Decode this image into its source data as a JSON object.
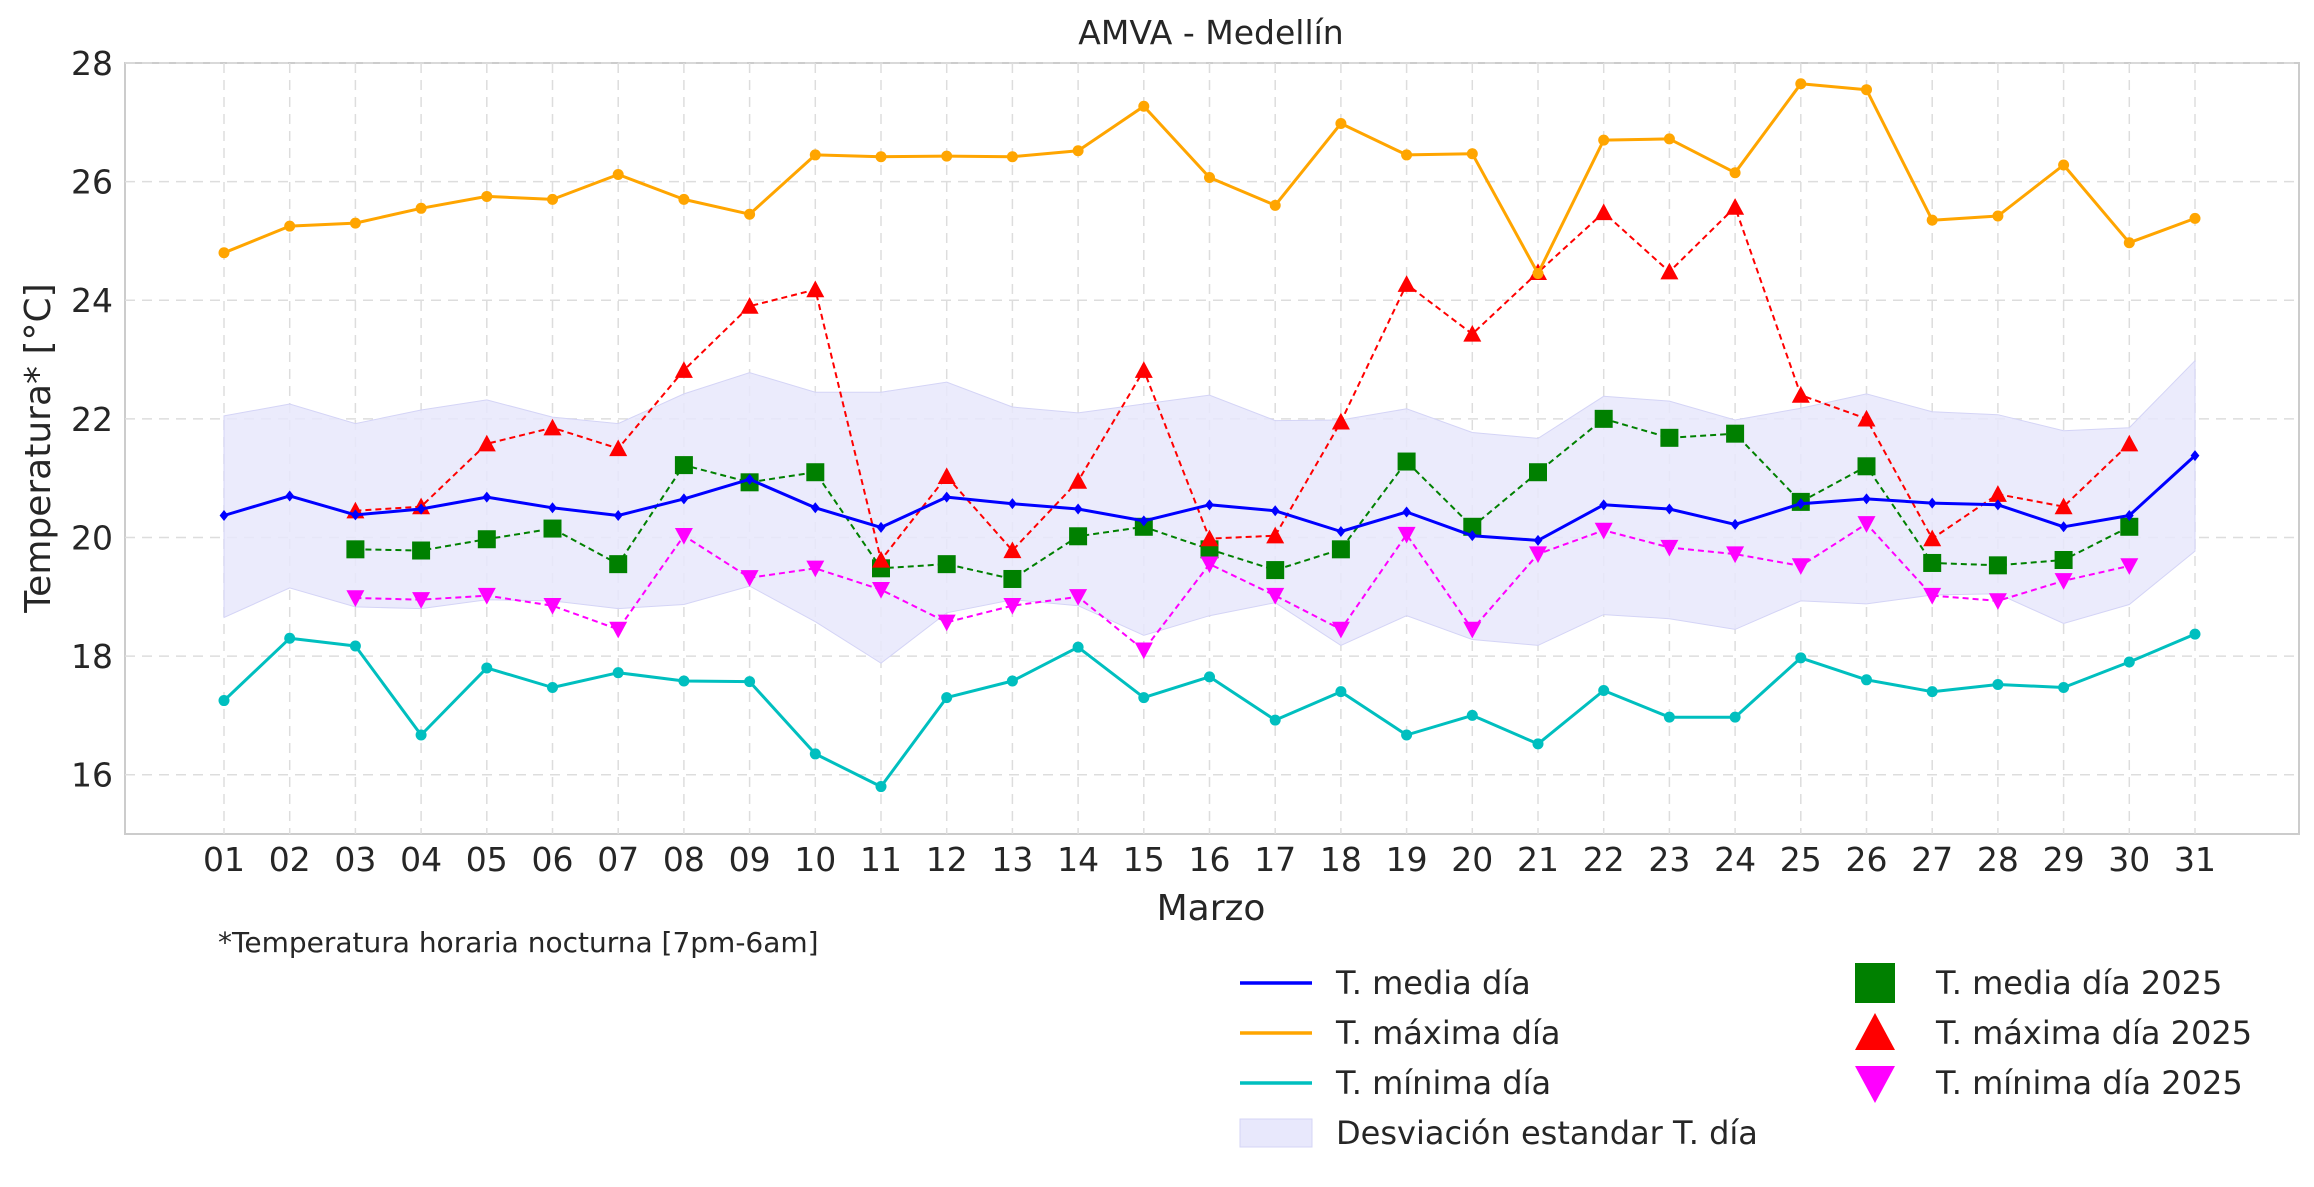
{
  "chart_data": {
    "type": "line",
    "title": "AMVA - Medellín",
    "xlabel": "Marzo",
    "ylabel": "Temperatura* [°C]",
    "footnote": "*Temperatura horaria nocturna [7pm-6am]",
    "categories": [
      "01",
      "02",
      "03",
      "04",
      "05",
      "06",
      "07",
      "08",
      "09",
      "10",
      "11",
      "12",
      "13",
      "14",
      "15",
      "16",
      "17",
      "18",
      "19",
      "20",
      "21",
      "22",
      "23",
      "24",
      "25",
      "26",
      "27",
      "28",
      "29",
      "30",
      "31"
    ],
    "ylim": [
      15,
      28
    ],
    "yticks": [
      16,
      18,
      20,
      22,
      24,
      26,
      28
    ],
    "grid": true,
    "legend_position": "bottom-right",
    "series": [
      {
        "name": "T. media día",
        "color": "#0000ff",
        "style": "solid",
        "marker": "diamond",
        "values": [
          20.37,
          20.7,
          20.38,
          20.48,
          20.68,
          20.5,
          20.37,
          20.65,
          20.98,
          20.5,
          20.17,
          20.68,
          20.57,
          20.48,
          20.28,
          20.55,
          20.45,
          20.1,
          20.43,
          20.03,
          19.95,
          20.55,
          20.48,
          20.22,
          20.57,
          20.65,
          20.58,
          20.55,
          20.18,
          20.37,
          21.38
        ]
      },
      {
        "name": "T. máxima día",
        "color": "#ffa500",
        "style": "solid",
        "marker": "dot",
        "values": [
          24.8,
          25.25,
          25.3,
          25.55,
          25.75,
          25.7,
          26.12,
          25.7,
          25.45,
          26.45,
          26.42,
          26.43,
          26.42,
          26.52,
          27.27,
          26.07,
          25.6,
          26.98,
          26.45,
          26.47,
          24.45,
          26.7,
          26.72,
          26.15,
          27.65,
          27.55,
          25.35,
          25.42,
          26.28,
          24.97,
          25.38
        ]
      },
      {
        "name": "T. mínima día",
        "color": "#00bfbf",
        "style": "solid",
        "marker": "dot",
        "values": [
          17.25,
          18.3,
          18.17,
          16.67,
          17.8,
          17.47,
          17.72,
          17.58,
          17.57,
          16.35,
          15.8,
          17.3,
          17.58,
          18.15,
          17.3,
          17.65,
          16.92,
          17.4,
          16.67,
          17.0,
          16.52,
          17.42,
          16.97,
          16.97,
          17.97,
          17.6,
          17.4,
          17.52,
          17.47,
          17.9,
          18.37
        ]
      },
      {
        "name": "T. media día 2025",
        "color": "#008000",
        "style": "dashed",
        "marker": "square",
        "values": [
          null,
          null,
          19.8,
          19.78,
          19.97,
          20.15,
          19.55,
          21.22,
          20.93,
          21.1,
          19.48,
          19.55,
          19.3,
          20.02,
          20.18,
          19.8,
          19.45,
          19.8,
          21.28,
          20.18,
          21.1,
          22.0,
          21.68,
          21.75,
          20.6,
          21.2,
          19.57,
          19.53,
          19.62,
          20.18,
          null
        ]
      },
      {
        "name": "T. máxima día 2025",
        "color": "#ff0000",
        "style": "dashed",
        "marker": "triangle-up",
        "values": [
          null,
          null,
          20.45,
          20.52,
          21.58,
          21.85,
          21.5,
          22.82,
          23.9,
          24.18,
          19.62,
          21.03,
          19.78,
          20.95,
          22.82,
          19.98,
          20.03,
          21.95,
          24.27,
          23.43,
          24.47,
          25.48,
          24.48,
          25.57,
          22.4,
          22.0,
          19.98,
          20.73,
          20.52,
          21.58,
          null
        ]
      },
      {
        "name": "T. mínima día 2025",
        "color": "#ff00ff",
        "style": "dashed",
        "marker": "triangle-down",
        "values": [
          null,
          null,
          18.98,
          18.95,
          19.02,
          18.85,
          18.45,
          20.03,
          19.32,
          19.48,
          19.12,
          18.57,
          18.85,
          19.0,
          18.1,
          19.55,
          19.02,
          18.45,
          20.05,
          18.45,
          19.72,
          20.12,
          19.83,
          19.72,
          19.52,
          20.23,
          19.02,
          18.93,
          19.27,
          19.52,
          null
        ]
      }
    ],
    "band": {
      "name": "Desviación estandar T. día",
      "color": "#e8e8fc",
      "upper": [
        22.05,
        22.25,
        21.92,
        22.15,
        22.32,
        22.03,
        21.92,
        22.42,
        22.78,
        22.45,
        22.45,
        22.62,
        22.2,
        22.1,
        22.25,
        22.4,
        21.97,
        21.98,
        22.17,
        21.77,
        21.67,
        22.38,
        22.3,
        21.98,
        22.18,
        22.42,
        22.12,
        22.07,
        21.8,
        21.85,
        22.98
      ],
      "lower": [
        18.65,
        19.15,
        18.83,
        18.8,
        18.95,
        18.93,
        18.8,
        18.87,
        19.18,
        18.58,
        17.88,
        18.73,
        18.95,
        18.85,
        18.35,
        18.68,
        18.9,
        18.18,
        18.68,
        18.28,
        18.18,
        18.7,
        18.63,
        18.45,
        18.93,
        18.88,
        19.03,
        19.05,
        18.55,
        18.87,
        19.77
      ]
    }
  }
}
